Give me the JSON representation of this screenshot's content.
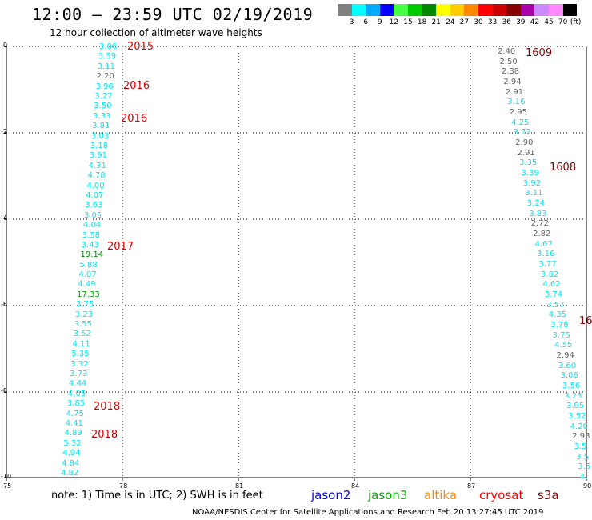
{
  "header": {
    "title": "12:00 – 23:59 UTC 02/19/2019",
    "subtitle": "12 hour collection of altimeter wave heights"
  },
  "legend": {
    "unit": "(ft)",
    "swatches": [
      {
        "color": "#808080",
        "label": "3"
      },
      {
        "color": "#00ffff",
        "label": "6"
      },
      {
        "color": "#00aaff",
        "label": "9"
      },
      {
        "color": "#0000ff",
        "label": "12"
      },
      {
        "color": "#44ff44",
        "label": "15"
      },
      {
        "color": "#00cc00",
        "label": "18"
      },
      {
        "color": "#008800",
        "label": "21"
      },
      {
        "color": "#ffff00",
        "label": "24"
      },
      {
        "color": "#ffcc00",
        "label": "27"
      },
      {
        "color": "#ff8800",
        "label": "30"
      },
      {
        "color": "#ff0000",
        "label": "33"
      },
      {
        "color": "#cc0000",
        "label": "36"
      },
      {
        "color": "#880000",
        "label": "39"
      },
      {
        "color": "#aa00aa",
        "label": "42"
      },
      {
        "color": "#cc88ff",
        "label": "45"
      },
      {
        "color": "#ff88ff",
        "label": "70"
      },
      {
        "color": "#000000",
        "label": ""
      }
    ]
  },
  "axes": {
    "x_ticks": [
      "75",
      "78",
      "81",
      "84",
      "87",
      "90"
    ],
    "y_ticks": [
      "0",
      "-2",
      "-4",
      "-6",
      "-8",
      "-10"
    ]
  },
  "track_west": [
    {
      "v": "3.06",
      "c": "#00e5ee"
    },
    {
      "v": "3.59",
      "c": "#00e5ee"
    },
    {
      "v": "3.11",
      "c": "#00e5ee"
    },
    {
      "v": "2.20",
      "c": "#666666"
    },
    {
      "v": "3.96",
      "c": "#00e5ee"
    },
    {
      "v": "3.27",
      "c": "#00e5ee"
    },
    {
      "v": "3.50",
      "c": "#00e5ee"
    },
    {
      "v": "3.33",
      "c": "#00e5ee"
    },
    {
      "v": "3.81",
      "c": "#00e5ee"
    },
    {
      "v": "3.03",
      "c": "#00e5ee"
    },
    {
      "v": "3.18",
      "c": "#00e5ee"
    },
    {
      "v": "3.91",
      "c": "#00e5ee"
    },
    {
      "v": "4.31",
      "c": "#00e5ee"
    },
    {
      "v": "4.78",
      "c": "#00e5ee"
    },
    {
      "v": "4.00",
      "c": "#00e5ee"
    },
    {
      "v": "4.07",
      "c": "#00e5ee"
    },
    {
      "v": "3.63",
      "c": "#00e5ee"
    },
    {
      "v": "3.05",
      "c": "#00e5ee"
    },
    {
      "v": "4.04",
      "c": "#00e5ee"
    },
    {
      "v": "3.58",
      "c": "#00e5ee"
    },
    {
      "v": "3.43",
      "c": "#00e5ee"
    },
    {
      "v": "19.14",
      "c": "#008800"
    },
    {
      "v": "5.88",
      "c": "#00e5ee"
    },
    {
      "v": "4.07",
      "c": "#00e5ee"
    },
    {
      "v": "4.49",
      "c": "#00e5ee"
    },
    {
      "v": "17.33",
      "c": "#00aa00"
    },
    {
      "v": "3.75",
      "c": "#00e5ee"
    },
    {
      "v": "3.23",
      "c": "#00e5ee"
    },
    {
      "v": "3.55",
      "c": "#00e5ee"
    },
    {
      "v": "3.52",
      "c": "#00e5ee"
    },
    {
      "v": "4.11",
      "c": "#00e5ee"
    },
    {
      "v": "5.35",
      "c": "#00e5ee"
    },
    {
      "v": "3.32",
      "c": "#00e5ee"
    },
    {
      "v": "3.73",
      "c": "#00e5ee"
    },
    {
      "v": "4.44",
      "c": "#00e5ee"
    },
    {
      "v": "4.05",
      "c": "#00e5ee"
    },
    {
      "v": "3.85",
      "c": "#00e5ee"
    },
    {
      "v": "4.75",
      "c": "#00e5ee"
    },
    {
      "v": "4.41",
      "c": "#00e5ee"
    },
    {
      "v": "4.89",
      "c": "#00e5ee"
    },
    {
      "v": "5.32",
      "c": "#00e5ee"
    },
    {
      "v": "4.94",
      "c": "#00e5ee"
    },
    {
      "v": "4.84",
      "c": "#00e5ee"
    },
    {
      "v": "4.82",
      "c": "#00e5ee"
    }
  ],
  "track_east": [
    {
      "v": "2.40",
      "c": "#666666"
    },
    {
      "v": "2.50",
      "c": "#666666"
    },
    {
      "v": "2.38",
      "c": "#666666"
    },
    {
      "v": "2.94",
      "c": "#666666"
    },
    {
      "v": "2.91",
      "c": "#666666"
    },
    {
      "v": "3.16",
      "c": "#00e5ee"
    },
    {
      "v": "2.95",
      "c": "#666666"
    },
    {
      "v": "4.25",
      "c": "#00e5ee"
    },
    {
      "v": "3.72",
      "c": "#00e5ee"
    },
    {
      "v": "2.90",
      "c": "#666666"
    },
    {
      "v": "2.91",
      "c": "#666666"
    },
    {
      "v": "3.35",
      "c": "#00e5ee"
    },
    {
      "v": "3.39",
      "c": "#00e5ee"
    },
    {
      "v": "3.92",
      "c": "#00e5ee"
    },
    {
      "v": "3.11",
      "c": "#00e5ee"
    },
    {
      "v": "3.24",
      "c": "#00e5ee"
    },
    {
      "v": "3.83",
      "c": "#00e5ee"
    },
    {
      "v": "2.72",
      "c": "#666666"
    },
    {
      "v": "2.82",
      "c": "#666666"
    },
    {
      "v": "4.67",
      "c": "#00e5ee"
    },
    {
      "v": "3.16",
      "c": "#00e5ee"
    },
    {
      "v": "3.77",
      "c": "#00e5ee"
    },
    {
      "v": "3.82",
      "c": "#00e5ee"
    },
    {
      "v": "4.62",
      "c": "#00e5ee"
    },
    {
      "v": "3.74",
      "c": "#00e5ee"
    },
    {
      "v": "3.57",
      "c": "#00e5ee"
    },
    {
      "v": "4.35",
      "c": "#00e5ee"
    },
    {
      "v": "3.78",
      "c": "#00e5ee"
    },
    {
      "v": "3.75",
      "c": "#00e5ee"
    },
    {
      "v": "4.55",
      "c": "#00e5ee"
    },
    {
      "v": "2.94",
      "c": "#666666"
    },
    {
      "v": "3.60",
      "c": "#00e5ee"
    },
    {
      "v": "3.06",
      "c": "#00e5ee"
    },
    {
      "v": "3.56",
      "c": "#00e5ee"
    },
    {
      "v": "3.23",
      "c": "#00e5ee"
    },
    {
      "v": "3.95",
      "c": "#00e5ee"
    },
    {
      "v": "3.52",
      "c": "#00e5ee"
    },
    {
      "v": "4.20",
      "c": "#00e5ee"
    },
    {
      "v": "2.98",
      "c": "#666666"
    },
    {
      "v": "3.5",
      "c": "#00e5ee"
    },
    {
      "v": "3.5",
      "c": "#00e5ee"
    },
    {
      "v": "3.5",
      "c": "#00e5ee"
    },
    {
      "v": "4.",
      "c": "#00e5ee"
    }
  ],
  "pass_labels": [
    {
      "t": "2015",
      "c": "#dd0000"
    },
    {
      "t": "2016",
      "c": "#dd0000"
    },
    {
      "t": "2016",
      "c": "#dd0000"
    },
    {
      "t": "2017",
      "c": "#dd0000"
    },
    {
      "t": "2018",
      "c": "#dd0000"
    },
    {
      "t": "2018",
      "c": "#dd0000"
    },
    {
      "t": "1609",
      "c": "#880000"
    },
    {
      "t": "1608",
      "c": "#880000"
    },
    {
      "t": "16",
      "c": "#880000"
    }
  ],
  "footer": {
    "note": "note:  1) Time is in UTC; 2) SWH is in feet",
    "satellites": [
      {
        "name": "jason2",
        "color": "#0000ff"
      },
      {
        "name": "jason3",
        "color": "#00aa00"
      },
      {
        "name": "altika",
        "color": "#ff8800"
      },
      {
        "name": "cryosat",
        "color": "#ff0000"
      },
      {
        "name": "s3a",
        "color": "#880000"
      }
    ],
    "credit": "NOAA/NESDIS Center for Satellite Applications and Research    Feb 20 13:27:45 UTC 2019"
  }
}
